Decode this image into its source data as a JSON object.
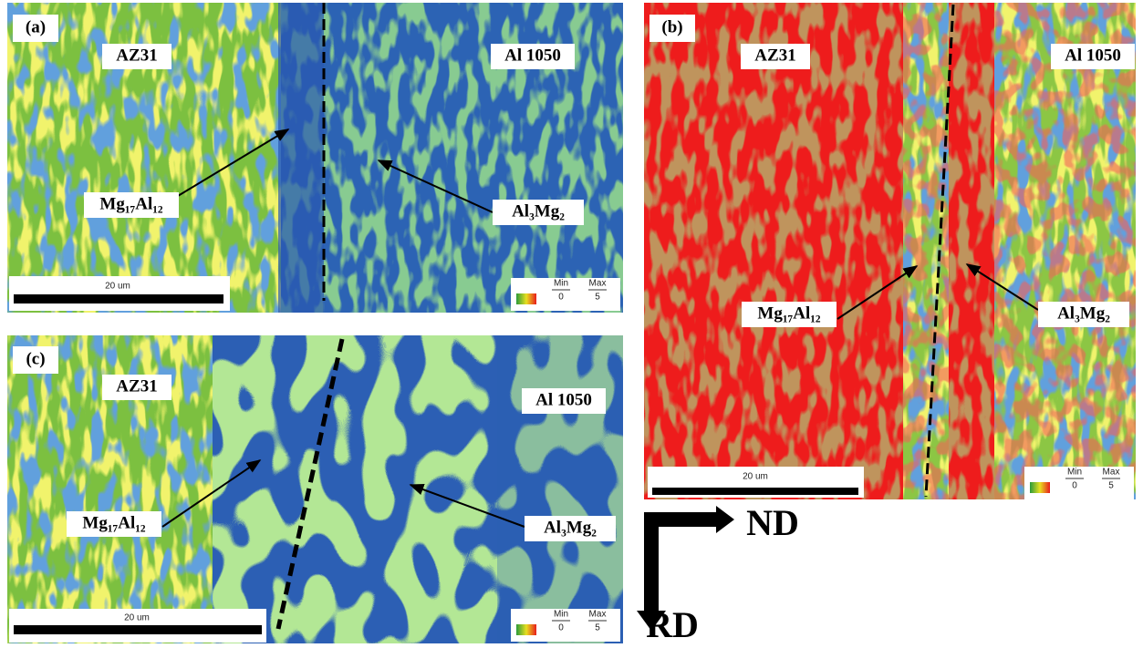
{
  "panels": [
    {
      "label": "(a)",
      "left_material": "AZ31",
      "right_material": "Al 1050",
      "left_phase": "Mg₁₇Al₁₂",
      "right_phase": "Al₃Mg₂",
      "scale_bar": "20 um",
      "legend": {
        "min_label": "Min",
        "min": 0,
        "max_label": "Max",
        "max": 5
      }
    },
    {
      "label": "(b)",
      "left_material": "AZ31",
      "right_material": "Al 1050",
      "left_phase": "Mg₁₇Al₁₂",
      "right_phase": "Al₃Mg₂",
      "scale_bar": "20 um",
      "legend": {
        "min_label": "Min",
        "min": 0,
        "max_label": "Max",
        "max": 5
      }
    },
    {
      "label": "(c)",
      "left_material": "AZ31",
      "right_material": "Al 1050",
      "left_phase": "Mg₁₇Al₁₂",
      "right_phase": "Al₃Mg₂",
      "scale_bar": "20 um",
      "legend": {
        "min_label": "Min",
        "min": 0,
        "max_label": "Max",
        "max": 5
      }
    }
  ],
  "axes": {
    "horizontal": "ND",
    "vertical": "RD"
  }
}
